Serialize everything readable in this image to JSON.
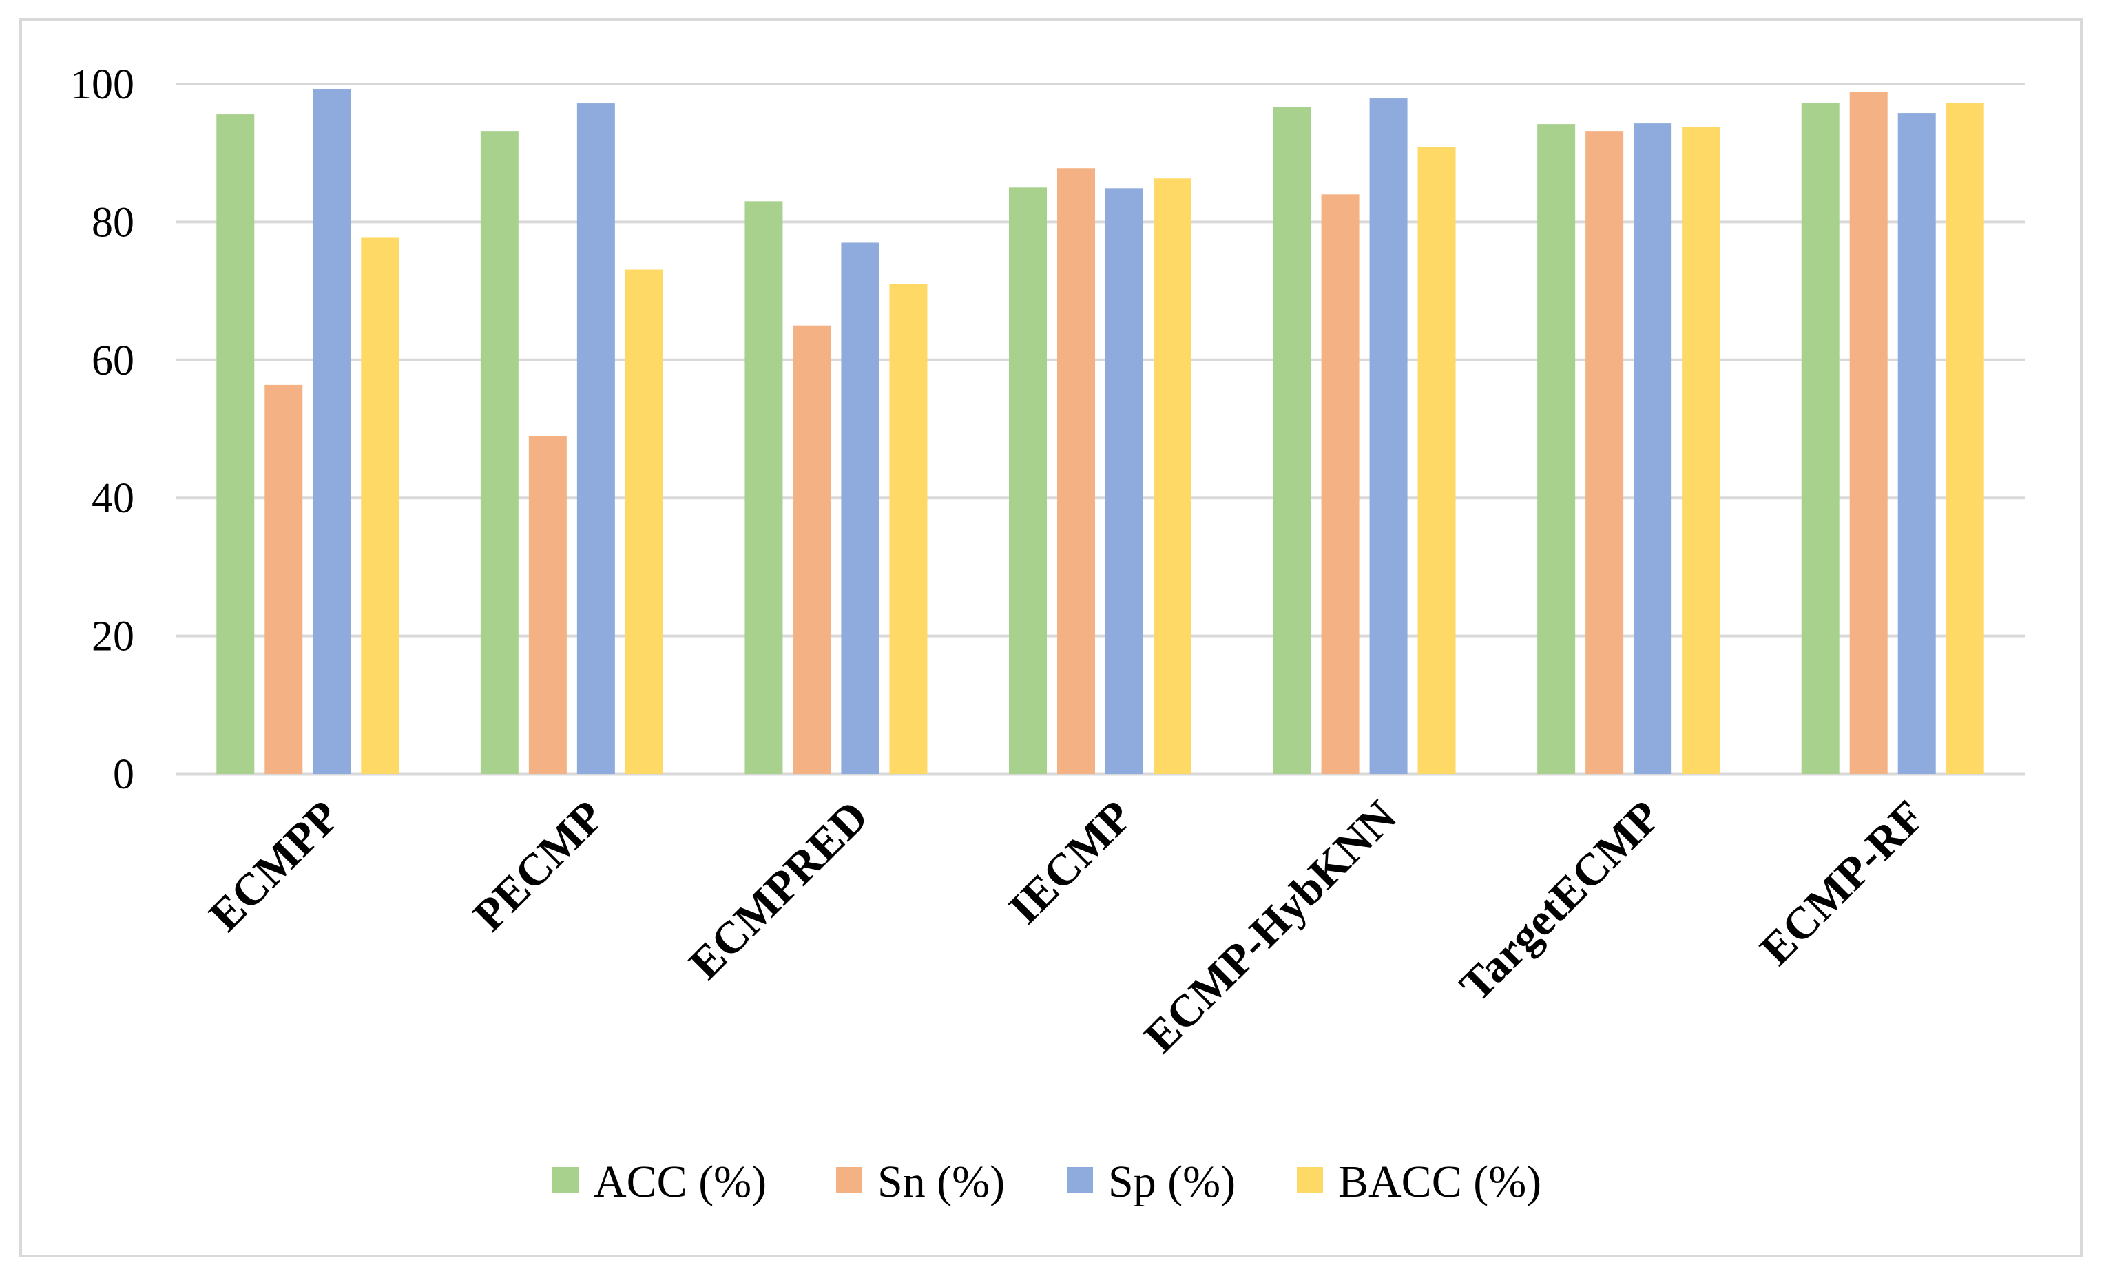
{
  "chart_data": {
    "type": "bar",
    "categories": [
      "ECMPP",
      "PECMP",
      "ECMPRED",
      "IECMP",
      "ECMP-HybKNN",
      "TargetECMP",
      "ECMP-RF"
    ],
    "series": [
      {
        "name": "ACC (%)",
        "color": "#a9d18e",
        "values": [
          95.6,
          93.2,
          83.0,
          85.0,
          96.7,
          94.2,
          97.3
        ]
      },
      {
        "name": "Sn (%)",
        "color": "#f4b183",
        "values": [
          56.4,
          49.0,
          65.0,
          87.8,
          84.0,
          93.2,
          98.8
        ]
      },
      {
        "name": "Sp (%)",
        "color": "#8faadc",
        "values": [
          99.3,
          97.2,
          77.0,
          84.9,
          97.9,
          94.3,
          95.8
        ]
      },
      {
        "name": "BACC (%)",
        "color": "#ffd966",
        "values": [
          77.8,
          73.1,
          71.0,
          86.3,
          90.9,
          93.8,
          97.3
        ]
      }
    ],
    "ylim": [
      0,
      100
    ],
    "yticks": [
      0,
      20,
      40,
      60,
      80,
      100
    ],
    "ytick_labels": [
      "0",
      "20",
      "40",
      "60",
      "80",
      "100"
    ],
    "grid": true,
    "gridline_color": "#d9d9d9",
    "legend_position": "bottom",
    "title": "",
    "xlabel": "",
    "ylabel": ""
  }
}
